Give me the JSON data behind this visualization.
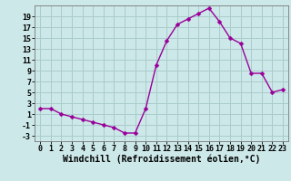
{
  "x": [
    0,
    1,
    2,
    3,
    4,
    5,
    6,
    7,
    8,
    9,
    10,
    11,
    12,
    13,
    14,
    15,
    16,
    17,
    18,
    19,
    20,
    21,
    22,
    23
  ],
  "y": [
    2,
    2,
    1,
    0.5,
    0,
    -0.5,
    -1,
    -1.5,
    -2.5,
    -2.5,
    2,
    10,
    14.5,
    17.5,
    18.5,
    19.5,
    20.5,
    18,
    15,
    14,
    8.5,
    8.5,
    5,
    5.5
  ],
  "line_color": "#990099",
  "marker": "D",
  "marker_size": 2.5,
  "bg_color": "#cce8e8",
  "grid_color": "#aacccc",
  "xlabel": "Windchill (Refroidissement éolien,°C)",
  "xlabel_fontsize": 7,
  "yticks": [
    -3,
    -1,
    1,
    3,
    5,
    7,
    9,
    11,
    13,
    15,
    17,
    19
  ],
  "xticks": [
    0,
    1,
    2,
    3,
    4,
    5,
    6,
    7,
    8,
    9,
    10,
    11,
    12,
    13,
    14,
    15,
    16,
    17,
    18,
    19,
    20,
    21,
    22,
    23
  ],
  "ylim": [
    -4,
    21
  ],
  "xlim": [
    -0.5,
    23.5
  ],
  "tick_fontsize": 6,
  "line_width": 1.0
}
